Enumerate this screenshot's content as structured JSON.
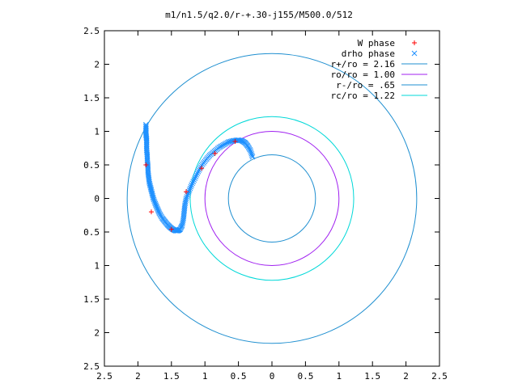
{
  "chart_data": {
    "type": "scatter",
    "title": "m1/n1.5/q2.0/r-+.30-j155/M500.0/512",
    "xlabel": "",
    "ylabel": "",
    "xlim": [
      -2.5,
      2.5
    ],
    "ylim": [
      -2.5,
      2.5
    ],
    "x_tick_labels": [
      "2.5",
      "2",
      "1.5",
      "1",
      "0.5",
      "0",
      "0.5",
      "1",
      "1.5",
      "2",
      "2.5"
    ],
    "y_tick_labels": [
      "2.5",
      "2",
      "1.5",
      "1",
      "0.5",
      "0",
      "0.5",
      "1",
      "1.5",
      "2",
      "2.5"
    ],
    "grid": false,
    "legend_position": "top-right",
    "legend": [
      {
        "label": "W phase",
        "marker": "plus",
        "color": "#ff0000"
      },
      {
        "label": "drho phase",
        "marker": "cross",
        "color": "#1e90ff"
      },
      {
        "label": "r+/ro = 2.16",
        "line": true,
        "color": "#1f8fd0"
      },
      {
        "label": "ro/ro = 1.00",
        "line": true,
        "color": "#a020f0"
      },
      {
        "label": "r-/ro = .65",
        "line": true,
        "color": "#1f8fd0"
      },
      {
        "label": "rc/ro = 1.22",
        "line": true,
        "color": "#00d8d8"
      }
    ],
    "circles": [
      {
        "name": "r+/ro",
        "r": 2.16,
        "color": "#1f8fd0"
      },
      {
        "name": "ro/ro",
        "r": 1.0,
        "color": "#a020f0"
      },
      {
        "name": "r-/ro",
        "r": 0.65,
        "color": "#1f8fd0"
      },
      {
        "name": "rc/ro",
        "r": 1.22,
        "color": "#00d8d8"
      }
    ],
    "series": [
      {
        "marker": "cross",
        "color": "#1e90ff",
        "x": [
          -1.88,
          -1.88,
          -1.88,
          -1.87,
          -1.87,
          -1.87,
          -1.86,
          -1.86,
          -1.85,
          -1.85,
          -1.84,
          -1.83,
          -1.81,
          -1.79,
          -1.77,
          -1.74,
          -1.71,
          -1.68,
          -1.64,
          -1.6,
          -1.56,
          -1.52,
          -1.48,
          -1.44,
          -1.4,
          -1.37,
          -1.34,
          -1.32,
          -1.31,
          -1.3,
          -1.28,
          -1.24,
          -1.2,
          -1.15,
          -1.1,
          -1.05,
          -0.99,
          -0.93,
          -0.86,
          -0.79,
          -0.72,
          -0.65,
          -0.58,
          -0.51,
          -0.45,
          -0.4,
          -0.36,
          -0.32,
          -0.29
        ],
        "y": [
          1.1,
          1.02,
          0.95,
          0.88,
          0.8,
          0.72,
          0.64,
          0.56,
          0.48,
          0.4,
          0.32,
          0.24,
          0.16,
          0.08,
          0.0,
          -0.08,
          -0.15,
          -0.22,
          -0.29,
          -0.34,
          -0.39,
          -0.43,
          -0.46,
          -0.48,
          -0.48,
          -0.46,
          -0.4,
          -0.3,
          -0.2,
          -0.1,
          0.0,
          0.1,
          0.2,
          0.3,
          0.4,
          0.49,
          0.57,
          0.64,
          0.7,
          0.76,
          0.8,
          0.84,
          0.86,
          0.87,
          0.86,
          0.83,
          0.78,
          0.71,
          0.62
        ]
      },
      {
        "marker": "plus",
        "color": "#ff0000",
        "x": [
          -1.88,
          -1.8,
          -1.5,
          -1.28,
          -1.05,
          -0.85,
          -0.55
        ],
        "y": [
          0.5,
          -0.2,
          -0.46,
          0.1,
          0.45,
          0.67,
          0.85
        ]
      }
    ]
  }
}
